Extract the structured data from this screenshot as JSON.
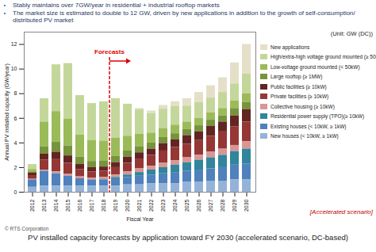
{
  "chart_data": {
    "type": "bar",
    "title": "PV installed capacity forecasts by application toward FY 2030 (accelerated scenario, DC-based)",
    "notes": [
      "Stably maintains over 7GW/year in residential + industrial rooftop markets",
      "The market size is estimated to double to 12 GW, driven by new applications in addition to the growth of self-consumption/ distributed PV market"
    ],
    "unit": "(Unit: GW (DC))",
    "y_label": "Annual PV installed capacity (GW/year)",
    "x_label": "Fiscal Year",
    "annotations": [
      {
        "text": "Forecasts",
        "x": "2019"
      },
      {
        "text": "[Accelerated scenario]"
      }
    ],
    "source": "© RTS Corporation",
    "stacked": true,
    "grid": false,
    "categories": [
      "2012",
      "2013",
      "2014",
      "2015",
      "2016",
      "2017",
      "2018",
      "2019",
      "2020",
      "2021",
      "2022",
      "2023",
      "2024",
      "2025",
      "2026",
      "2027",
      "2028",
      "2029",
      "2030"
    ],
    "series": [
      {
        "name": "New applications",
        "color": "#e6dfc8",
        "values": [
          0,
          0,
          0,
          0,
          0,
          0,
          0,
          0,
          0,
          0.1,
          0.2,
          0.3,
          0.4,
          0.6,
          0.8,
          1.0,
          1.2,
          1.7,
          2.4
        ]
      },
      {
        "name": "High/extra-high voltage ground mounted (≥ 50kW)",
        "color": "#c4d79b",
        "values": [
          0.4,
          1.9,
          3.8,
          4.5,
          3.2,
          3.0,
          3.2,
          3.2,
          2.6,
          2.0,
          1.6,
          1.6,
          1.5,
          1.3,
          1.3,
          1.2,
          1.3,
          1.4,
          1.6
        ]
      },
      {
        "name": "Low-voltage ground mounted (< 50kW)",
        "color": "#9bbb59",
        "values": [
          0.2,
          2.0,
          2.5,
          2.2,
          1.8,
          1.7,
          1.6,
          1.5,
          1.2,
          1.0,
          0.8,
          0.7,
          0.7,
          0.6,
          0.6,
          0.6,
          0.6,
          0.6,
          0.7
        ]
      },
      {
        "name": "Large rooftop (≥ 1MW)",
        "color": "#77933c",
        "values": [
          0.1,
          0.6,
          0.8,
          0.8,
          0.6,
          0.5,
          0.5,
          0.5,
          0.5,
          0.5,
          0.5,
          0.5,
          0.5,
          0.5,
          0.5,
          0.5,
          0.5,
          0.6,
          0.6
        ]
      },
      {
        "name": "Public facilities (≥ 10kW)",
        "color": "#632523",
        "values": [
          0.2,
          0.5,
          0.6,
          0.6,
          0.4,
          0.35,
          0.35,
          0.4,
          0.5,
          0.5,
          0.5,
          0.6,
          0.6,
          0.7,
          0.7,
          0.8,
          0.8,
          0.9,
          1.0
        ]
      },
      {
        "name": "Private facilities (≥ 10kW)",
        "color": "#953735",
        "values": [
          0.3,
          0.8,
          1.0,
          0.9,
          0.6,
          0.5,
          0.5,
          0.6,
          0.7,
          0.8,
          0.9,
          1.0,
          1.1,
          1.1,
          1.2,
          1.3,
          1.4,
          1.5,
          1.6
        ]
      },
      {
        "name": "Collective housing (≥ 10kW)",
        "color": "#d99694",
        "values": [
          0.05,
          0.1,
          0.15,
          0.15,
          0.15,
          0.15,
          0.15,
          0.2,
          0.25,
          0.3,
          0.3,
          0.35,
          0.35,
          0.4,
          0.4,
          0.45,
          0.5,
          0.5,
          0.6
        ]
      },
      {
        "name": "Residential power supply (TPO)(≥ 10kW)",
        "color": "#31859c",
        "values": [
          0,
          0,
          0,
          0,
          0,
          0,
          0.05,
          0.1,
          0.2,
          0.3,
          0.4,
          0.5,
          0.6,
          0.7,
          0.8,
          0.9,
          1.0,
          1.1,
          1.2
        ]
      },
      {
        "name": "Existing houses (< 10kW, ≥ 1kW)",
        "color": "#4f81bd",
        "values": [
          0.6,
          1.2,
          1.0,
          0.8,
          0.6,
          0.5,
          0.5,
          0.6,
          0.6,
          0.7,
          0.7,
          0.8,
          0.9,
          0.9,
          1.0,
          1.0,
          1.1,
          1.2,
          1.3
        ]
      },
      {
        "name": "New houses (< 10kW, ≥ 1kW)",
        "color": "#95b3d7",
        "values": [
          0.4,
          0.5,
          0.5,
          0.5,
          0.5,
          0.5,
          0.5,
          0.5,
          0.6,
          0.6,
          0.7,
          0.7,
          0.7,
          0.8,
          0.8,
          0.9,
          0.9,
          1.0,
          1.0
        ]
      }
    ],
    "ylim": [
      0,
      13
    ],
    "yticks": [
      0,
      2,
      4,
      6,
      8,
      10,
      12
    ]
  }
}
